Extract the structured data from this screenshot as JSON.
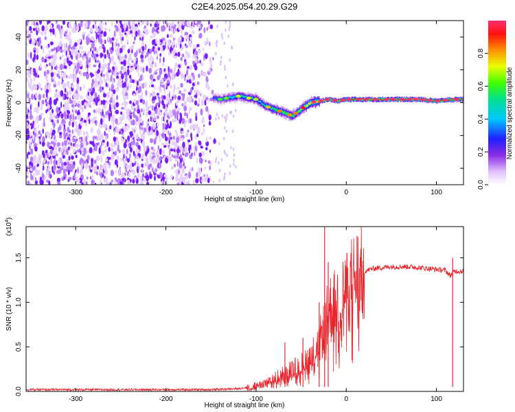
{
  "title": "C2E4.2025.054.20.29.G29",
  "chart_data": [
    {
      "type": "heatmap",
      "xlabel": "Height of straight line (km)",
      "ylabel": "Frequency (Hz)",
      "xlim": [
        -355,
        130
      ],
      "ylim": [
        -50,
        50
      ],
      "xticks": [
        -300,
        -200,
        -100,
        0,
        100
      ],
      "yticks": [
        -40,
        -20,
        0,
        20,
        40
      ],
      "colorbar": {
        "label": "Normalized spectral amplitude",
        "range": [
          0,
          1
        ],
        "ticks": [
          "0.0",
          "0.2",
          "0.4",
          "0.6",
          "0.8"
        ],
        "tick_values": [
          0.0,
          0.2,
          0.4,
          0.6,
          0.8
        ],
        "colors": [
          "#ffffff",
          "#d9b3ff",
          "#7b2fff",
          "#0000ff",
          "#00d8ff",
          "#00ff40",
          "#f0ff00",
          "#ff8000",
          "#ff0000",
          "#ff2060"
        ]
      },
      "noise_region": {
        "x_start": -355,
        "x_end": -145,
        "freq_range": [
          -50,
          50
        ]
      },
      "signal_track": {
        "x": [
          -148,
          -140,
          -130,
          -120,
          -110,
          -100,
          -90,
          -80,
          -70,
          -60,
          -50,
          -40,
          -30,
          -20,
          -10,
          0,
          20,
          40,
          60,
          80,
          100,
          120,
          130
        ],
        "freq": [
          3,
          2,
          3,
          4,
          3,
          2,
          -2,
          -4,
          -6,
          -8,
          -4,
          0,
          1,
          2,
          1,
          2,
          2,
          2,
          2,
          2,
          1,
          2,
          2
        ],
        "amplitude": [
          0.3,
          0.35,
          0.4,
          0.45,
          0.5,
          0.45,
          0.5,
          0.55,
          0.6,
          0.55,
          0.65,
          0.75,
          0.8,
          0.85,
          0.85,
          0.9,
          0.95,
          0.95,
          0.95,
          0.95,
          0.9,
          0.9,
          0.9
        ]
      }
    },
    {
      "type": "line",
      "xlabel": "Height of straight line (km)",
      "ylabel": "SNR (10 * v/v)",
      "y_multiplier": "(x10^4)",
      "xlim": [
        -355,
        130
      ],
      "ylim": [
        0,
        1.85
      ],
      "xticks": [
        -300,
        -200,
        -100,
        0,
        100
      ],
      "yticks": [
        0.0,
        0.5,
        1.0,
        1.5
      ],
      "ytick_labels": [
        "0.0",
        "0.5",
        "1.0",
        "1.5"
      ],
      "color": "#e8242b",
      "series": [
        {
          "x": [
            -355,
            -300,
            -250,
            -200,
            -150,
            -120,
            -100,
            -90,
            -80,
            -70,
            -60,
            -50,
            -45,
            -40,
            -35,
            -30,
            -25,
            -22,
            -20,
            -15,
            -10,
            -5,
            0,
            5,
            10,
            20,
            30,
            40,
            50,
            60,
            70,
            80,
            90,
            100,
            110,
            115,
            120,
            130
          ],
          "y": [
            0.02,
            0.02,
            0.02,
            0.02,
            0.02,
            0.03,
            0.06,
            0.1,
            0.15,
            0.2,
            0.25,
            0.3,
            0.35,
            0.4,
            0.45,
            0.55,
            0.7,
            0.8,
            0.9,
            0.95,
            1.0,
            1.05,
            1.1,
            1.2,
            1.28,
            1.35,
            1.38,
            1.39,
            1.4,
            1.4,
            1.4,
            1.39,
            1.38,
            1.37,
            1.36,
            1.3,
            1.35,
            1.35
          ]
        }
      ],
      "spikes": [
        {
          "x": -24,
          "y": 1.85
        },
        {
          "x": -20,
          "y": 1.45
        },
        {
          "x": -30,
          "y": 1.0
        },
        {
          "x": -48,
          "y": 0.6
        },
        {
          "x": -68,
          "y": 0.55
        },
        {
          "x": 118,
          "y": 1.5
        }
      ]
    }
  ]
}
